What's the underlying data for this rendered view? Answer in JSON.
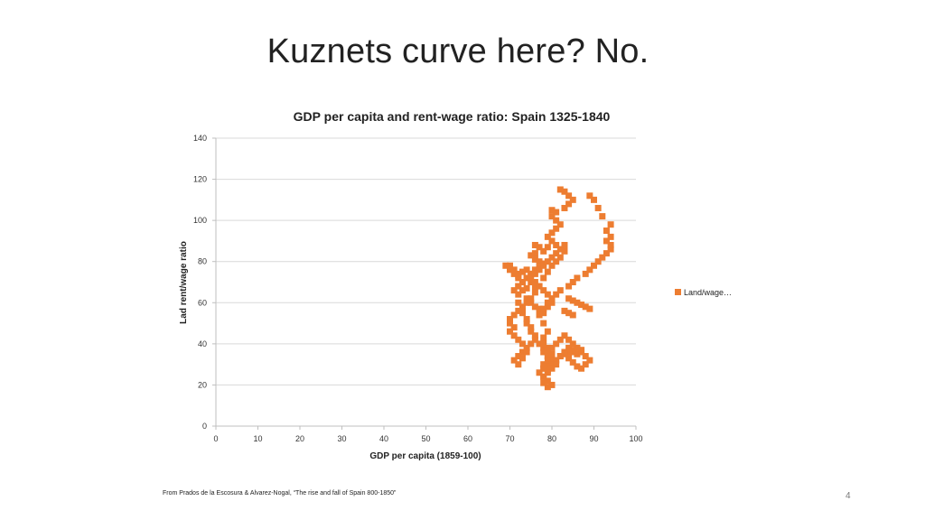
{
  "slide": {
    "title": "Kuznets curve here? No.",
    "source": "From Prados de la Escosura & Alvarez-Nogal, “The rise and fall of Spain 800-1850”",
    "page_number": "4"
  },
  "chart_data": {
    "type": "scatter",
    "title": "GDP per capita and rent-wage ratio: Spain 1325-1840",
    "xlabel": "GDP per capita (1859-100)",
    "ylabel": "Lad rent/wage ratio",
    "xlim": [
      0,
      100
    ],
    "ylim": [
      0,
      140
    ],
    "xticks": [
      "0",
      "10",
      "20",
      "30",
      "40",
      "50",
      "60",
      "70",
      "80",
      "90",
      "100"
    ],
    "yticks": [
      "0",
      "20",
      "40",
      "60",
      "80",
      "100",
      "120",
      "140"
    ],
    "grid": "horizontal",
    "legend_position": "right",
    "color": "#ED7D31",
    "series": [
      {
        "name": "Land/wage…",
        "x": [
          82,
          83,
          84,
          85,
          84,
          83,
          81,
          80,
          80,
          81,
          82,
          81,
          80,
          79,
          80,
          81,
          79,
          78,
          77,
          76,
          76,
          75,
          76,
          77,
          78,
          77,
          76,
          75,
          74,
          75,
          76,
          74,
          73,
          72,
          73,
          74,
          75,
          74,
          73,
          72,
          72,
          71,
          70,
          69,
          70,
          71,
          72,
          73,
          72,
          71,
          72,
          74,
          75,
          76,
          77,
          78,
          79,
          80,
          80,
          79,
          78,
          77,
          76,
          75,
          76,
          77,
          78,
          79,
          80,
          81,
          82,
          83,
          83,
          82,
          81,
          80,
          79,
          78,
          77,
          76,
          75,
          74,
          73,
          72,
          71,
          70,
          70,
          71,
          70,
          71,
          72,
          73,
          74,
          73,
          72,
          71,
          72,
          73,
          74,
          75,
          76,
          75,
          74,
          73,
          72,
          73,
          74,
          75,
          76,
          77,
          78,
          78,
          79,
          80,
          79,
          78,
          77,
          78,
          79,
          80,
          79,
          78,
          78,
          79,
          80,
          81,
          82,
          83,
          84,
          85,
          86,
          87,
          86,
          85,
          84,
          83,
          84,
          85,
          86,
          87,
          88,
          89,
          88,
          87,
          86,
          85,
          84,
          83,
          82,
          81,
          80,
          79,
          79,
          80,
          81,
          82,
          81,
          80,
          79,
          78,
          78,
          79,
          80,
          79,
          78,
          78,
          79,
          78,
          77,
          78,
          79,
          80,
          81,
          82,
          84,
          85,
          86,
          88,
          89,
          90,
          91,
          92,
          93,
          94,
          94,
          93,
          94,
          93,
          94,
          92,
          91,
          90,
          89,
          84,
          85,
          86,
          87,
          88,
          89,
          83,
          84,
          85
        ],
        "y": [
          115,
          114,
          112,
          110,
          108,
          106,
          104,
          105,
          102,
          100,
          98,
          96,
          94,
          92,
          90,
          88,
          87,
          85,
          87,
          88,
          84,
          83,
          81,
          80,
          79,
          77,
          76,
          74,
          72,
          70,
          68,
          67,
          66,
          68,
          70,
          72,
          74,
          76,
          75,
          74,
          72,
          76,
          78,
          78,
          76,
          74,
          73,
          70,
          68,
          66,
          64,
          62,
          60,
          58,
          57,
          55,
          58,
          60,
          62,
          64,
          66,
          68,
          70,
          72,
          74,
          76,
          78,
          80,
          82,
          84,
          86,
          88,
          85,
          82,
          80,
          78,
          75,
          72,
          68,
          65,
          62,
          60,
          58,
          56,
          54,
          52,
          50,
          48,
          46,
          44,
          42,
          40,
          38,
          36,
          34,
          32,
          30,
          33,
          36,
          40,
          44,
          48,
          52,
          56,
          60,
          55,
          50,
          46,
          42,
          40,
          38,
          36,
          34,
          32,
          30,
          28,
          26,
          24,
          22,
          20,
          19,
          21,
          24,
          27,
          30,
          32,
          34,
          36,
          38,
          36,
          35,
          37,
          38,
          37,
          36,
          35,
          33,
          31,
          29,
          28,
          30,
          32,
          34,
          36,
          38,
          40,
          42,
          44,
          42,
          40,
          38,
          36,
          34,
          33,
          32,
          34,
          30,
          28,
          26,
          28,
          30,
          32,
          35,
          38,
          40,
          43,
          46,
          50,
          54,
          57,
          60,
          62,
          64,
          66,
          68,
          70,
          72,
          74,
          76,
          78,
          80,
          82,
          84,
          86,
          88,
          90,
          92,
          95,
          98,
          102,
          106,
          110,
          112,
          62,
          61,
          60,
          59,
          58,
          57,
          56,
          55,
          54
        ]
      }
    ]
  }
}
